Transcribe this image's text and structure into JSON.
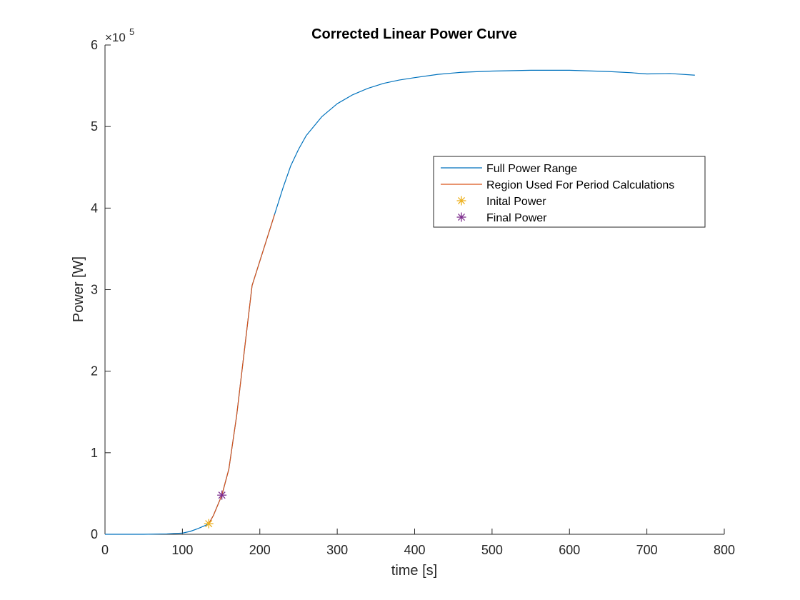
{
  "chart_data": {
    "type": "line",
    "title": "Corrected Linear Power Curve",
    "xlabel": "time [s]",
    "ylabel": "Power [W]",
    "y_exponent_base": "×10",
    "y_exponent_power": "5",
    "xlim": [
      0,
      800
    ],
    "ylim": [
      0,
      600000
    ],
    "y_display_scale": 100000,
    "x_ticks": [
      0,
      100,
      200,
      300,
      400,
      500,
      600,
      700,
      800
    ],
    "y_ticks": [
      0,
      100000,
      200000,
      300000,
      400000,
      500000,
      600000
    ],
    "grid": false,
    "legend_position": "upper-right",
    "series": [
      {
        "name": "Full Power Range",
        "style": "line",
        "color": "#0072BD",
        "x": [
          0,
          50,
          80,
          100,
          110,
          120,
          130,
          134,
          140,
          151,
          160,
          170,
          180,
          190,
          200,
          210,
          219,
          230,
          240,
          250,
          260,
          280,
          300,
          320,
          340,
          360,
          380,
          400,
          430,
          460,
          500,
          550,
          600,
          650,
          680,
          700,
          730,
          762
        ],
        "y": [
          0,
          0,
          500,
          1500,
          3500,
          7000,
          11000,
          13000,
          23000,
          48000,
          80000,
          145000,
          225000,
          305000,
          335000,
          365000,
          392000,
          425000,
          452000,
          472000,
          489000,
          512000,
          528000,
          539000,
          547000,
          553000,
          557000,
          560000,
          564000,
          566500,
          568000,
          569000,
          569000,
          567500,
          566000,
          564500,
          565000,
          563000
        ]
      },
      {
        "name": "Region Used For Period Calculations",
        "style": "line",
        "color": "#D95319",
        "x": [
          134,
          140,
          151,
          160,
          170,
          180,
          190,
          200,
          210,
          219
        ],
        "y": [
          13000,
          23000,
          48000,
          80000,
          145000,
          225000,
          305000,
          335000,
          365000,
          392000
        ]
      },
      {
        "name": "Inital Power",
        "style": "marker",
        "color": "#EDB120",
        "x": [
          134
        ],
        "y": [
          13000
        ]
      },
      {
        "name": "Final Power",
        "style": "marker",
        "color": "#7E2F8E",
        "x": [
          151
        ],
        "y": [
          48000
        ]
      }
    ]
  }
}
